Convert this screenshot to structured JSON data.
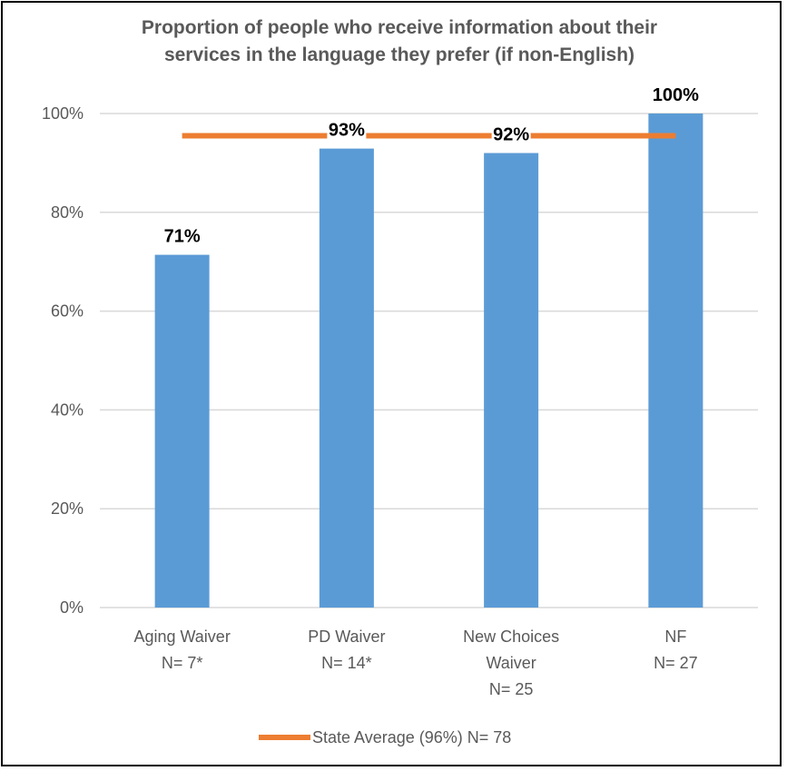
{
  "chart_data": {
    "type": "bar",
    "title": "Proportion of people who receive information about their services in the language they prefer (if non-English)",
    "title_lines": [
      "Proportion of people who receive information about their",
      "services in the language they prefer (if non-English)"
    ],
    "categories": [
      "Aging Waiver N= 7*",
      "PD Waiver N= 14*",
      "New Choices Waiver N= 25",
      "NF N= 27"
    ],
    "category_lines": [
      [
        "Aging Waiver",
        "N= 7*"
      ],
      [
        "PD Waiver",
        "N= 14*"
      ],
      [
        "New Choices",
        "Waiver",
        "N= 25"
      ],
      [
        "NF",
        "N= 27"
      ]
    ],
    "values": [
      71.4,
      92.9,
      92,
      100
    ],
    "data_labels": [
      "71%",
      "93%",
      "92%",
      "100%"
    ],
    "reference_line": {
      "name": "State Average (96%) N= 78",
      "value": 95.5
    },
    "ylim": [
      0,
      100
    ],
    "y_ticks": [
      0,
      20,
      40,
      60,
      80,
      100
    ],
    "y_tick_labels": [
      "0%",
      "20%",
      "40%",
      "60%",
      "80%",
      "100%"
    ],
    "xlabel": "",
    "ylabel": "",
    "grid": true,
    "legend_position": "bottom",
    "colors": {
      "bar": "#5b9bd5",
      "line": "#ed7d31",
      "grid": "#d9d9d9",
      "text": "#595959",
      "label": "#000000"
    }
  }
}
